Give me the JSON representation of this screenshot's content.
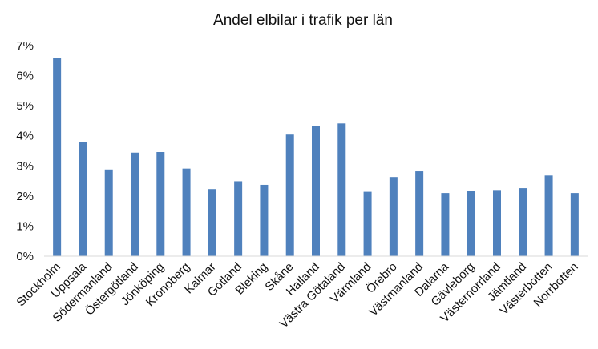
{
  "chart_data": {
    "type": "bar",
    "title": "Andel elbilar i trafik per län",
    "xlabel": "",
    "ylabel": "",
    "ylim": [
      0,
      7
    ],
    "yticks": [
      "0%",
      "1%",
      "2%",
      "3%",
      "4%",
      "5%",
      "6%",
      "7%"
    ],
    "grid": false,
    "legend": "none",
    "bar_color": "#4F81BD",
    "categories": [
      "Stockholm",
      "Uppsala",
      "Södermanland",
      "Östergötland",
      "Jönköping",
      "Kronoberg",
      "Kalmar",
      "Gotland",
      "Bleking",
      "Skåne",
      "Halland",
      "Västra Götaland",
      "Värmland",
      "Örebro",
      "Västmanland",
      "Dalarna",
      "Gävleborg",
      "Västernorrland",
      "Jämtland",
      "Västerbotten",
      "Norrbotten"
    ],
    "values": [
      6.6,
      3.78,
      2.88,
      3.44,
      3.46,
      2.91,
      2.23,
      2.49,
      2.37,
      4.04,
      4.33,
      4.41,
      2.14,
      2.63,
      2.82,
      2.1,
      2.16,
      2.2,
      2.26,
      2.68,
      2.1
    ]
  }
}
